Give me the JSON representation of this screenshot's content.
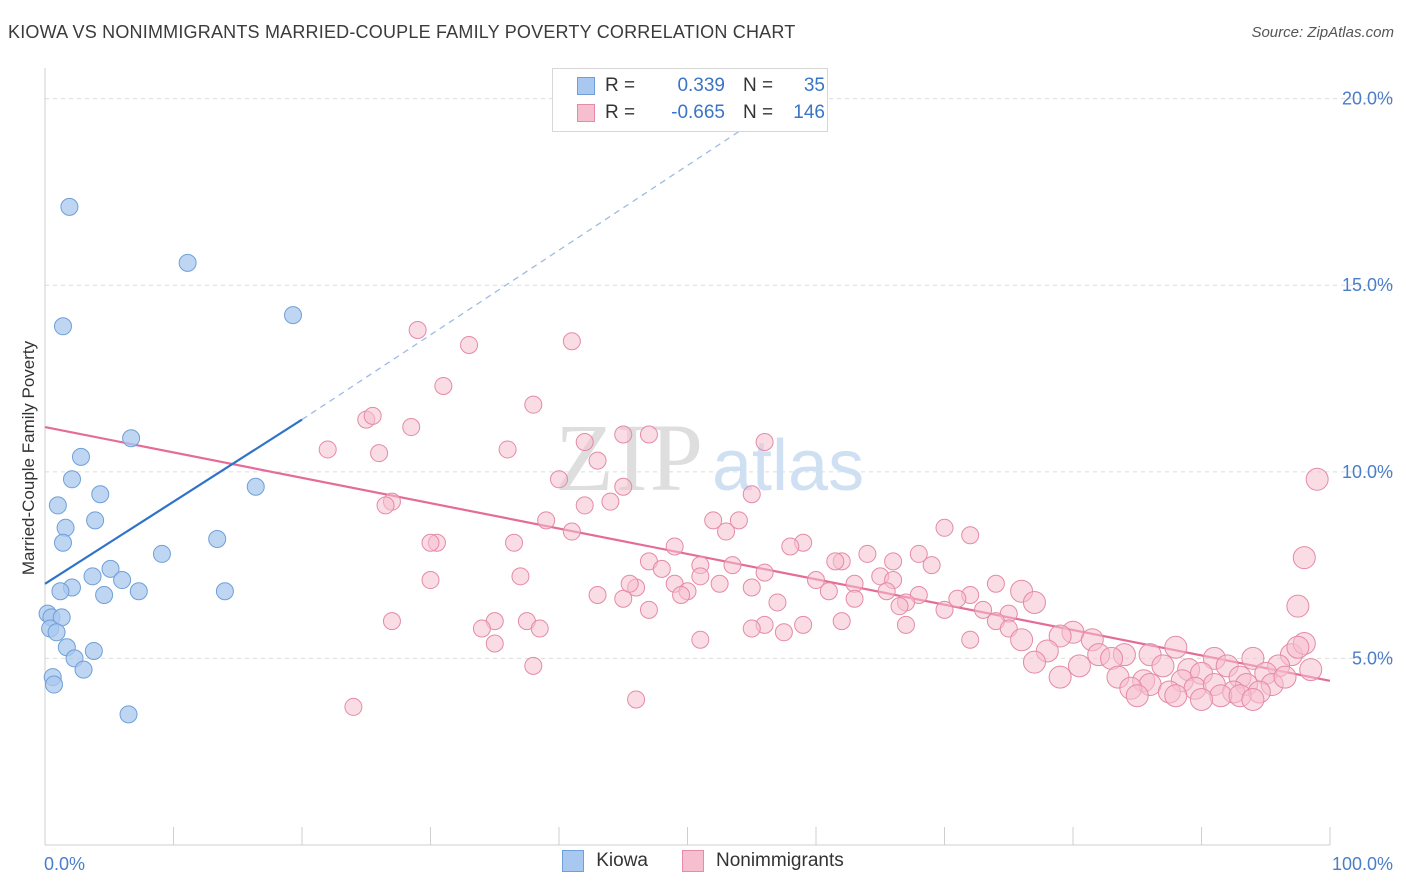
{
  "header": {
    "title": "KIOWA VS NONIMMIGRANTS MARRIED-COUPLE FAMILY POVERTY CORRELATION CHART",
    "source": "Source: ZipAtlas.com"
  },
  "watermark": {
    "zip": "ZIP",
    "atlas": "atlas"
  },
  "legend_stats": {
    "rows": [
      {
        "r_label": "R =",
        "r_value": "0.339",
        "n_label": "N =",
        "n_value": "35",
        "color": "#a9c8ef",
        "border": "#6f9fd8"
      },
      {
        "r_label": "R =",
        "r_value": "-0.665",
        "n_label": "N =",
        "n_value": "146",
        "color": "#f5bfd0",
        "border": "#e58aa8"
      }
    ]
  },
  "chart_data": {
    "type": "scatter",
    "title": "KIOWA VS NONIMMIGRANTS MARRIED-COUPLE FAMILY POVERTY CORRELATION CHART",
    "xlabel": "",
    "ylabel": "Married-Couple Family Poverty",
    "xlim": [
      0,
      100
    ],
    "ylim": [
      0,
      20.5
    ],
    "x_tick_labels": [
      "0.0%",
      "100.0%"
    ],
    "y_ticks": [
      5,
      10,
      15,
      20
    ],
    "y_tick_labels": [
      "5.0%",
      "10.0%",
      "15.0%",
      "20.0%"
    ],
    "grid": true,
    "legend_position": "bottom",
    "series": [
      {
        "name": "Kiowa",
        "color": "#a9c8ef",
        "edge": "#6f9fd8",
        "trend_color": "#2f73c9",
        "trend": {
          "x0": 0,
          "y0": 7.0,
          "x1": 20,
          "y1": 11.4,
          "dashed_to_x": 57,
          "dashed_to_y": 19.8
        },
        "points": [
          [
            1.9,
            17.1
          ],
          [
            11.1,
            15.6
          ],
          [
            1.4,
            13.9
          ],
          [
            19.3,
            14.2
          ],
          [
            6.7,
            10.9
          ],
          [
            2.8,
            10.4
          ],
          [
            2.1,
            9.8
          ],
          [
            4.3,
            9.4
          ],
          [
            1.0,
            9.1
          ],
          [
            3.9,
            8.7
          ],
          [
            1.6,
            8.5
          ],
          [
            1.4,
            8.1
          ],
          [
            13.4,
            8.2
          ],
          [
            9.1,
            7.8
          ],
          [
            16.4,
            9.6
          ],
          [
            5.1,
            7.4
          ],
          [
            3.7,
            7.2
          ],
          [
            6.0,
            7.1
          ],
          [
            2.1,
            6.9
          ],
          [
            1.2,
            6.8
          ],
          [
            4.6,
            6.7
          ],
          [
            7.3,
            6.8
          ],
          [
            14.0,
            6.8
          ],
          [
            0.2,
            6.2
          ],
          [
            0.5,
            6.1
          ],
          [
            1.3,
            6.1
          ],
          [
            0.4,
            5.8
          ],
          [
            0.9,
            5.7
          ],
          [
            1.7,
            5.3
          ],
          [
            3.8,
            5.2
          ],
          [
            2.3,
            5.0
          ],
          [
            3.0,
            4.7
          ],
          [
            0.6,
            4.5
          ],
          [
            0.7,
            4.3
          ],
          [
            6.5,
            3.5
          ]
        ]
      },
      {
        "name": "Nonimmigrants",
        "color": "#f5bfd0",
        "edge": "#e58aa8",
        "trend_color": "#e46c97",
        "trend": {
          "x0": 0,
          "y0": 11.2,
          "x1": 100,
          "y1": 4.4
        },
        "points": [
          [
            29.0,
            13.8
          ],
          [
            33.0,
            13.4
          ],
          [
            41.0,
            13.5
          ],
          [
            31.0,
            12.3
          ],
          [
            38.0,
            11.8
          ],
          [
            25.0,
            11.4
          ],
          [
            25.5,
            11.5
          ],
          [
            28.5,
            11.2
          ],
          [
            45.0,
            11.0
          ],
          [
            47.0,
            11.0
          ],
          [
            22.0,
            10.6
          ],
          [
            26.0,
            10.5
          ],
          [
            36.0,
            10.6
          ],
          [
            42.0,
            10.8
          ],
          [
            56.0,
            10.8
          ],
          [
            43.0,
            10.3
          ],
          [
            40.0,
            9.8
          ],
          [
            45.0,
            9.6
          ],
          [
            55.0,
            9.4
          ],
          [
            27.0,
            9.2
          ],
          [
            26.5,
            9.1
          ],
          [
            42.0,
            9.1
          ],
          [
            44.0,
            9.2
          ],
          [
            39.0,
            8.7
          ],
          [
            52.0,
            8.7
          ],
          [
            54.0,
            8.7
          ],
          [
            53.0,
            8.4
          ],
          [
            41.0,
            8.4
          ],
          [
            70.0,
            8.5
          ],
          [
            72.0,
            8.3
          ],
          [
            30.5,
            8.1
          ],
          [
            30.0,
            8.1
          ],
          [
            36.5,
            8.1
          ],
          [
            49.0,
            8.0
          ],
          [
            59.0,
            8.1
          ],
          [
            58.0,
            8.0
          ],
          [
            64.0,
            7.8
          ],
          [
            62.0,
            7.6
          ],
          [
            61.5,
            7.6
          ],
          [
            53.5,
            7.5
          ],
          [
            47.0,
            7.6
          ],
          [
            51.0,
            7.5
          ],
          [
            66.0,
            7.6
          ],
          [
            68.0,
            7.8
          ],
          [
            69.0,
            7.5
          ],
          [
            37.0,
            7.2
          ],
          [
            56.0,
            7.3
          ],
          [
            48.0,
            7.4
          ],
          [
            51.0,
            7.2
          ],
          [
            60.0,
            7.1
          ],
          [
            63.0,
            7.0
          ],
          [
            65.0,
            7.2
          ],
          [
            74.0,
            7.0
          ],
          [
            30.0,
            7.1
          ],
          [
            49.0,
            7.0
          ],
          [
            52.5,
            7.0
          ],
          [
            66.0,
            7.1
          ],
          [
            46.0,
            6.9
          ],
          [
            50.0,
            6.8
          ],
          [
            55.0,
            6.9
          ],
          [
            61.0,
            6.8
          ],
          [
            65.5,
            6.8
          ],
          [
            68.0,
            6.7
          ],
          [
            43.0,
            6.7
          ],
          [
            45.0,
            6.6
          ],
          [
            49.5,
            6.7
          ],
          [
            72.0,
            6.7
          ],
          [
            76.0,
            6.8
          ],
          [
            57.0,
            6.5
          ],
          [
            63.0,
            6.6
          ],
          [
            67.0,
            6.5
          ],
          [
            71.0,
            6.6
          ],
          [
            77.0,
            6.5
          ],
          [
            47.0,
            6.3
          ],
          [
            66.5,
            6.4
          ],
          [
            70.0,
            6.3
          ],
          [
            73.0,
            6.3
          ],
          [
            75.0,
            6.2
          ],
          [
            27.0,
            6.0
          ],
          [
            35.0,
            6.0
          ],
          [
            37.5,
            6.0
          ],
          [
            56.0,
            5.9
          ],
          [
            59.0,
            5.9
          ],
          [
            62.0,
            6.0
          ],
          [
            67.0,
            5.9
          ],
          [
            74.0,
            6.0
          ],
          [
            34.0,
            5.8
          ],
          [
            38.5,
            5.8
          ],
          [
            55.0,
            5.8
          ],
          [
            57.5,
            5.7
          ],
          [
            75.0,
            5.8
          ],
          [
            80.0,
            5.7
          ],
          [
            35.0,
            5.4
          ],
          [
            51.0,
            5.5
          ],
          [
            72.0,
            5.5
          ],
          [
            76.0,
            5.5
          ],
          [
            79.0,
            5.6
          ],
          [
            81.5,
            5.5
          ],
          [
            78.0,
            5.2
          ],
          [
            82.0,
            5.1
          ],
          [
            84.0,
            5.1
          ],
          [
            86.0,
            5.1
          ],
          [
            88.0,
            5.3
          ],
          [
            91.0,
            5.0
          ],
          [
            94.0,
            5.0
          ],
          [
            97.0,
            5.1
          ],
          [
            98.0,
            5.4
          ],
          [
            38.0,
            4.8
          ],
          [
            77.0,
            4.9
          ],
          [
            80.5,
            4.8
          ],
          [
            83.0,
            5.0
          ],
          [
            87.0,
            4.8
          ],
          [
            89.0,
            4.7
          ],
          [
            92.0,
            4.8
          ],
          [
            96.0,
            4.8
          ],
          [
            79.0,
            4.5
          ],
          [
            83.5,
            4.5
          ],
          [
            85.5,
            4.4
          ],
          [
            88.5,
            4.4
          ],
          [
            90.0,
            4.6
          ],
          [
            93.0,
            4.5
          ],
          [
            95.0,
            4.6
          ],
          [
            86.0,
            4.3
          ],
          [
            89.5,
            4.2
          ],
          [
            91.0,
            4.3
          ],
          [
            93.5,
            4.3
          ],
          [
            95.5,
            4.3
          ],
          [
            84.5,
            4.2
          ],
          [
            87.5,
            4.1
          ],
          [
            92.5,
            4.1
          ],
          [
            94.5,
            4.1
          ],
          [
            85.0,
            4.0
          ],
          [
            88.0,
            4.0
          ],
          [
            91.5,
            4.0
          ],
          [
            93.0,
            4.0
          ],
          [
            24.0,
            3.7
          ],
          [
            46.0,
            3.9
          ],
          [
            90.0,
            3.9
          ],
          [
            94.0,
            3.9
          ],
          [
            99.0,
            9.8
          ],
          [
            98.0,
            7.7
          ],
          [
            97.5,
            6.4
          ],
          [
            97.5,
            5.3
          ],
          [
            98.5,
            4.7
          ],
          [
            96.5,
            4.5
          ],
          [
            45.5,
            7.0
          ]
        ]
      }
    ]
  }
}
